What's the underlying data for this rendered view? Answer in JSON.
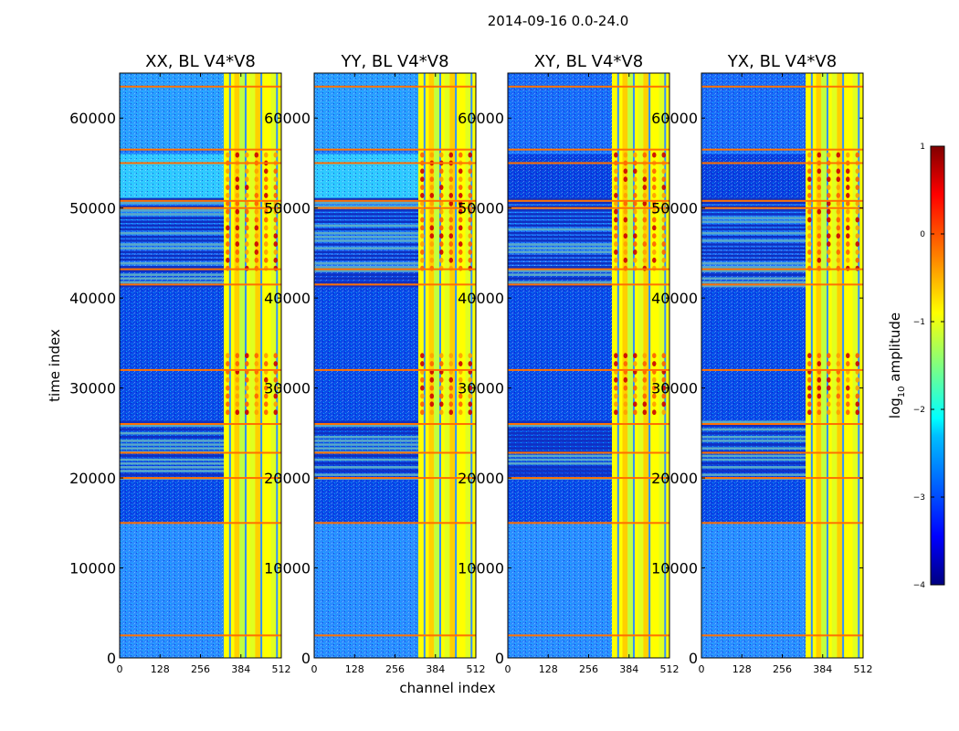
{
  "chart_data": {
    "type": "heatmap",
    "suptitle": "2014-09-16 0.0-24.0",
    "xlabel": "channel index",
    "ylabel": "time index",
    "xlim": [
      0,
      512
    ],
    "ylim": [
      0,
      65000
    ],
    "xticks": [
      "0",
      "128",
      "256",
      "384",
      "512"
    ],
    "yticks": [
      "0",
      "10000",
      "20000",
      "30000",
      "40000",
      "50000",
      "60000"
    ],
    "panels": [
      {
        "title": "XX, BL V4*V8",
        "upper_band": "cyan"
      },
      {
        "title": "YY, BL V4*V8",
        "upper_band": "cyan"
      },
      {
        "title": "XY, BL V4*V8",
        "upper_band": "blue"
      },
      {
        "title": "YX, BL V4*V8",
        "upper_band": "blue"
      }
    ],
    "colorbar": {
      "label": "log10 amplitude",
      "label_base": "log",
      "label_sub": "10",
      "label_rest": " amplitude",
      "range": [
        -4,
        1
      ],
      "ticks": [
        "1",
        "0",
        "−1",
        "−2",
        "−3",
        "−4"
      ],
      "colormap": "jet",
      "colors": [
        "#000080",
        "#0000ff",
        "#0080ff",
        "#00ffff",
        "#80ff80",
        "#ffff00",
        "#ff8000",
        "#ff0000",
        "#800000"
      ]
    },
    "bands": {
      "flagged_time_ranges": [
        [
          19800,
          26200
        ],
        [
          41200,
          50900
        ]
      ],
      "flag_lines": [
        2500,
        15000,
        20000,
        22800,
        26000,
        32000,
        41500,
        43200,
        50000,
        50800,
        55000,
        56500,
        63500
      ],
      "bright_channel_range": [
        330,
        512
      ],
      "strong_rfi_time_ranges": [
        [
          27000,
          34000
        ],
        [
          43000,
          56000
        ]
      ]
    }
  }
}
